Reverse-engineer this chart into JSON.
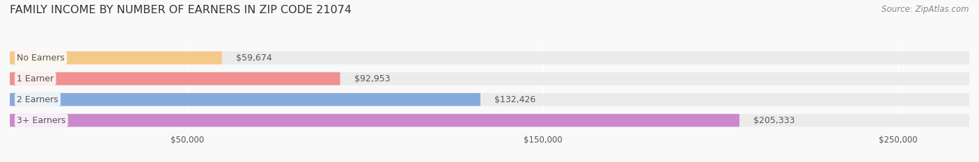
{
  "title": "FAMILY INCOME BY NUMBER OF EARNERS IN ZIP CODE 21074",
  "source": "Source: ZipAtlas.com",
  "categories": [
    "No Earners",
    "1 Earner",
    "2 Earners",
    "3+ Earners"
  ],
  "values": [
    59674,
    92953,
    132426,
    205333
  ],
  "bar_colors": [
    "#f5c98a",
    "#f09090",
    "#88aadd",
    "#cc88cc"
  ],
  "bar_bg_color": "#ebebeb",
  "xlim": [
    0,
    270000
  ],
  "xticks": [
    50000,
    150000,
    250000
  ],
  "xtick_labels": [
    "$50,000",
    "$150,000",
    "$250,000"
  ],
  "label_color": "#555555",
  "title_color": "#333333",
  "source_color": "#888888",
  "bar_height": 0.62,
  "figsize": [
    14.06,
    2.33
  ],
  "dpi": 100
}
